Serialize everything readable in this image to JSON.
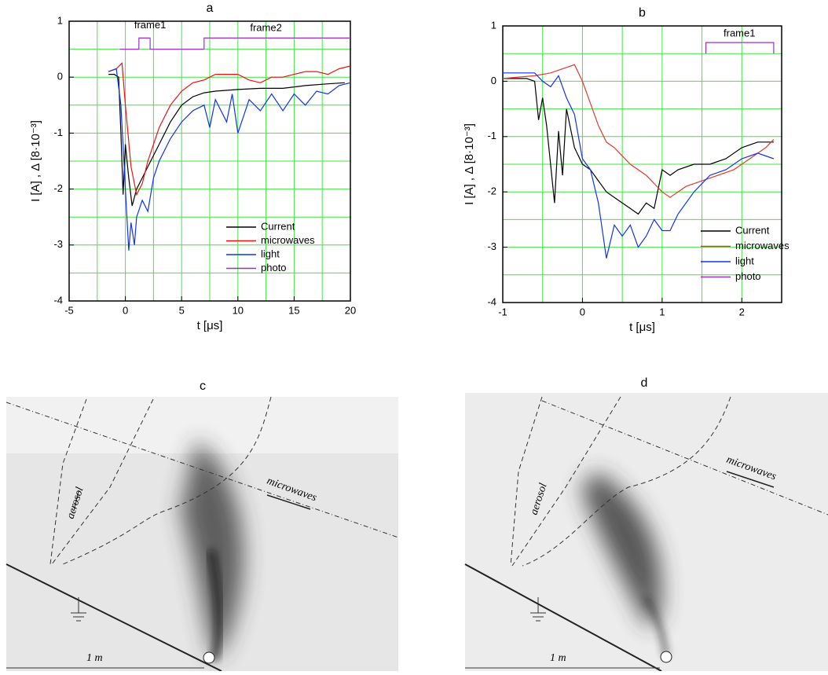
{
  "chart_data": [
    {
      "type": "line",
      "title": "a",
      "x_label": "t [μs]",
      "y_label": "I [A] ,   Δ [8·10⁻³]",
      "xlim": [
        -5,
        20
      ],
      "ylim": [
        -4,
        1
      ],
      "xticks": [
        -5,
        0,
        5,
        10,
        15,
        20
      ],
      "yticks": [
        -4,
        -3,
        -2,
        -1,
        0,
        1
      ],
      "grid": true,
      "grid_color": "#44e444",
      "xgrid": [
        -2.5,
        0,
        2.5,
        5,
        7.5,
        10,
        12.5,
        15,
        17.5
      ],
      "ygrid": [
        -3.5,
        -3,
        -2.5,
        -2,
        -1.5,
        -1,
        -0.5,
        0,
        0.5
      ],
      "legend": "lower right",
      "annotations": [
        {
          "text": "frame1",
          "x": 2.2,
          "y": 0.92
        },
        {
          "text": "frame2",
          "x": 12.5,
          "y": 0.87
        }
      ],
      "series": [
        {
          "name": "Current",
          "color": "#000000",
          "x": [
            -1.5,
            -1,
            -0.6,
            -0.4,
            -0.2,
            0,
            0.3,
            0.6,
            1,
            1.5,
            2,
            3,
            4,
            5,
            6,
            7,
            8,
            10,
            12,
            14,
            16,
            18,
            19.5
          ],
          "values": [
            0.05,
            0.05,
            0,
            -1,
            -2.1,
            -1.2,
            -1.8,
            -2.3,
            -2,
            -1.8,
            -1.6,
            -1.2,
            -0.8,
            -0.5,
            -0.35,
            -0.28,
            -0.25,
            -0.22,
            -0.2,
            -0.2,
            -0.15,
            -0.12,
            -0.1
          ]
        },
        {
          "name": "microwaves",
          "color": "#ee1111",
          "x": [
            -1.5,
            -0.8,
            -0.3,
            0,
            0.5,
            1,
            1.5,
            2,
            3,
            4,
            5,
            6,
            7,
            8,
            9,
            10,
            11,
            12,
            13,
            14,
            15,
            16,
            17,
            18,
            19,
            20
          ],
          "values": [
            0.1,
            0.15,
            0.25,
            -0.5,
            -1.6,
            -2.1,
            -1.9,
            -1.5,
            -0.9,
            -0.5,
            -0.25,
            -0.1,
            -0.05,
            0.05,
            0.05,
            0.05,
            -0.05,
            -0.1,
            0,
            0,
            0.05,
            0.1,
            0.1,
            0.05,
            0.15,
            0.2
          ]
        },
        {
          "name": "light",
          "color": "#1133ee",
          "x": [
            -1.5,
            -0.8,
            -0.4,
            0,
            0.3,
            0.5,
            0.8,
            1,
            1.5,
            2,
            2.5,
            3,
            4,
            5,
            6,
            7,
            7.5,
            8,
            9,
            9.5,
            10,
            11,
            12,
            13,
            14,
            15,
            16,
            17,
            18,
            19,
            20
          ],
          "values": [
            0.1,
            0.15,
            -0.5,
            -2,
            -3.1,
            -2.6,
            -3,
            -2.5,
            -2.2,
            -2.4,
            -1.8,
            -1.5,
            -1.1,
            -0.8,
            -0.6,
            -0.5,
            -0.9,
            -0.4,
            -0.8,
            -0.3,
            -1,
            -0.4,
            -0.6,
            -0.3,
            -0.6,
            -0.3,
            -0.5,
            -0.25,
            -0.3,
            -0.15,
            -0.1
          ]
        },
        {
          "name": "photo",
          "color": "#9b30c8",
          "x": [
            -0.5,
            1.2,
            1.2,
            2.2,
            2.2,
            7,
            7,
            20
          ],
          "values": [
            0.5,
            0.5,
            0.7,
            0.7,
            0.5,
            0.5,
            0.7,
            0.7
          ]
        }
      ]
    },
    {
      "type": "line",
      "title": "b",
      "x_label": "t [μs]",
      "y_label": "I [A] ,   Δ [8·10⁻³]",
      "xlim": [
        -1,
        2.5
      ],
      "ylim": [
        -4,
        1
      ],
      "xticks": [
        -1,
        0,
        1,
        2
      ],
      "yticks": [
        -4,
        -3,
        -2,
        -1,
        0,
        1
      ],
      "grid": true,
      "grid_color": "#44e444",
      "xgrid": [
        -0.5,
        0,
        0.5,
        1,
        1.5,
        2
      ],
      "ygrid": [
        -3.5,
        -3,
        -2.5,
        -2,
        -1.5,
        -1,
        -0.5,
        0,
        0.5
      ],
      "legend": "lower right",
      "annotations": [
        {
          "text": "frame1",
          "x": 1.97,
          "y": 0.86
        }
      ],
      "series": [
        {
          "name": "Current",
          "color": "#000000",
          "x": [
            -1,
            -0.7,
            -0.6,
            -0.55,
            -0.5,
            -0.45,
            -0.35,
            -0.3,
            -0.25,
            -0.2,
            -0.1,
            0,
            0.1,
            0.2,
            0.3,
            0.4,
            0.5,
            0.6,
            0.7,
            0.8,
            0.9,
            1,
            1.1,
            1.2,
            1.4,
            1.6,
            1.8,
            2,
            2.2,
            2.4
          ],
          "values": [
            0.05,
            0.05,
            0,
            -0.7,
            -0.3,
            -0.8,
            -2.2,
            -0.9,
            -1.7,
            -0.5,
            -1.2,
            -1.5,
            -1.6,
            -1.8,
            -2,
            -2.1,
            -2.2,
            -2.3,
            -2.4,
            -2.2,
            -2.3,
            -1.6,
            -1.7,
            -1.6,
            -1.5,
            -1.5,
            -1.4,
            -1.2,
            -1.1,
            -1.1
          ]
        },
        {
          "name": "microwaves",
          "color": "#e33a2a",
          "x": [
            -1,
            -0.6,
            -0.4,
            -0.2,
            -0.1,
            0,
            0.1,
            0.2,
            0.3,
            0.4,
            0.6,
            0.8,
            1,
            1.1,
            1.3,
            1.5,
            1.7,
            1.9,
            2.1,
            2.3,
            2.4
          ],
          "values": [
            0.05,
            0.1,
            0.15,
            0.25,
            0.3,
            0,
            -0.4,
            -0.8,
            -1.1,
            -1.2,
            -1.5,
            -1.7,
            -2,
            -2.1,
            -1.9,
            -1.8,
            -1.7,
            -1.6,
            -1.4,
            -1.2,
            -1.05
          ]
        },
        {
          "name": "light",
          "color": "#1133ee",
          "x": [
            -1,
            -0.6,
            -0.5,
            -0.4,
            -0.3,
            -0.2,
            -0.1,
            0,
            0.1,
            0.2,
            0.3,
            0.4,
            0.5,
            0.6,
            0.7,
            0.8,
            0.9,
            1,
            1.1,
            1.2,
            1.4,
            1.6,
            1.8,
            2,
            2.2,
            2.4
          ],
          "values": [
            0.15,
            0.15,
            0,
            -0.1,
            0.1,
            -0.3,
            -0.6,
            -1.4,
            -1.6,
            -2.2,
            -3.2,
            -2.6,
            -2.8,
            -2.6,
            -3,
            -2.8,
            -2.5,
            -2.7,
            -2.7,
            -2.4,
            -2,
            -1.7,
            -1.6,
            -1.4,
            -1.3,
            -1.4
          ]
        },
        {
          "name": "photo",
          "color": "#9b30c8",
          "x": [
            1.55,
            1.55,
            2.4,
            2.4
          ],
          "values": [
            0.5,
            0.7,
            0.7,
            0.5
          ]
        }
      ]
    }
  ],
  "photos": [
    {
      "label": "c",
      "aerosol": "aerosol",
      "microwaves": "microwaves",
      "scale": "1 m"
    },
    {
      "label": "d",
      "aerosol": "aerosol",
      "microwaves": "microwaves",
      "scale": "1 m"
    }
  ]
}
